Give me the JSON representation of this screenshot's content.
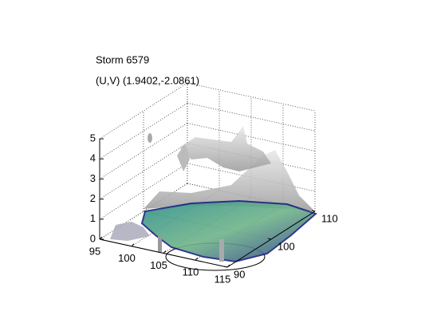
{
  "chart_data": {
    "type": "isosurface",
    "title": "Storm 6579",
    "subtitle": "(U,V) (1.9402,-2.0861)",
    "xlim": [
      95,
      115
    ],
    "xticks": [
      95,
      100,
      105,
      110,
      115
    ],
    "ylim": [
      90,
      110
    ],
    "yticks": [
      90,
      100,
      110
    ],
    "zlim": [
      0,
      5
    ],
    "zticks": [
      0,
      1,
      2,
      3,
      4,
      5
    ],
    "grid": true
  }
}
